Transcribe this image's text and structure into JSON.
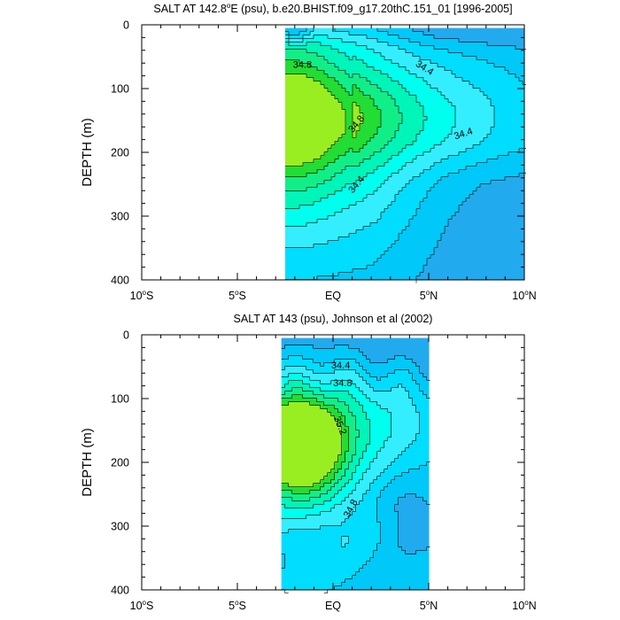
{
  "colors": {
    "c_lt_34_0": "#22aaee",
    "c_34_0_34_2": "#00c8f8",
    "c_34_2_34_4": "#00ddff",
    "c_34_4_34_6": "#33eeff",
    "c_34_6_34_8": "#00ffee",
    "c_34_8_35_0": "#00f5b8",
    "c_35_0_35_2": "#11ee88",
    "c_35_2_35_4": "#22dd33",
    "c_gt_35_4": "#99ee22",
    "line": "#000000"
  },
  "chart_data": [
    {
      "id": "top",
      "type": "contour",
      "title": "SALT AT 142.8°E (psu), b.e20.BHIST.f09_g17.20thC.151_01 [1996-2005]",
      "title_parts": {
        "pre": "SALT AT 142.8",
        "sup": "o",
        "post": "E (psu), b.e20.BHIST.f09_g17.20thC.151_01 [1996-2005]"
      },
      "xlabel": "",
      "ylabel": "DEPTH (m)",
      "xlim": [
        -10,
        10
      ],
      "ylim": [
        400,
        0
      ],
      "x_data_range": [
        -2.5,
        10
      ],
      "y_data_range": [
        5,
        400
      ],
      "xticks": [
        {
          "value": -10,
          "num": "10",
          "sup": "o",
          "suf": "S"
        },
        {
          "value": -5,
          "num": "5",
          "sup": "o",
          "suf": "S"
        },
        {
          "value": 0,
          "num": "EQ",
          "sup": "",
          "suf": ""
        },
        {
          "value": 5,
          "num": "5",
          "sup": "o",
          "suf": "N"
        },
        {
          "value": 10,
          "num": "10",
          "sup": "o",
          "suf": "N"
        }
      ],
      "yticks": [
        0,
        100,
        200,
        300,
        400
      ],
      "levels": [
        34.0,
        34.2,
        34.4,
        34.6,
        34.8,
        35.0,
        35.2,
        35.4
      ],
      "contour_labels": [
        {
          "text": "34.8",
          "x": -1.6,
          "y": 62,
          "rot": 0
        },
        {
          "text": "34.4",
          "x": 4.8,
          "y": 67,
          "rot": 32
        },
        {
          "text": "34.8",
          "x": 1.2,
          "y": 155,
          "rot": -50
        },
        {
          "text": "34.4",
          "x": 6.8,
          "y": 170,
          "rot": -18
        },
        {
          "text": "34.4",
          "x": 1.2,
          "y": 250,
          "rot": -50
        }
      ]
    },
    {
      "id": "bottom",
      "type": "contour",
      "title": "SALT AT 143 (psu), Johnson et al (2002)",
      "xlabel": "",
      "ylabel": "DEPTH (m)",
      "xlim": [
        -10,
        10
      ],
      "ylim": [
        400,
        0
      ],
      "x_data_range": [
        -2.7,
        5
      ],
      "y_data_range": [
        5,
        400
      ],
      "xticks": [
        {
          "value": -10,
          "num": "10",
          "sup": "o",
          "suf": "S"
        },
        {
          "value": -5,
          "num": "5",
          "sup": "o",
          "suf": "S"
        },
        {
          "value": 0,
          "num": "EQ",
          "sup": "",
          "suf": ""
        },
        {
          "value": 5,
          "num": "5",
          "sup": "o",
          "suf": "N"
        },
        {
          "value": 10,
          "num": "10",
          "sup": "o",
          "suf": "N"
        }
      ],
      "yticks": [
        0,
        100,
        200,
        300,
        400
      ],
      "levels": [
        34.0,
        34.2,
        34.4,
        34.6,
        34.8,
        35.0,
        35.2,
        35.4
      ],
      "contour_labels": [
        {
          "text": "34.4",
          "x": 0.4,
          "y": 47,
          "rot": 0
        },
        {
          "text": "34.8",
          "x": 0.5,
          "y": 75,
          "rot": 0
        },
        {
          "text": "35.2",
          "x": 0.4,
          "y": 142,
          "rot": 68
        },
        {
          "text": "34.8",
          "x": 0.9,
          "y": 272,
          "rot": -62
        }
      ]
    }
  ]
}
